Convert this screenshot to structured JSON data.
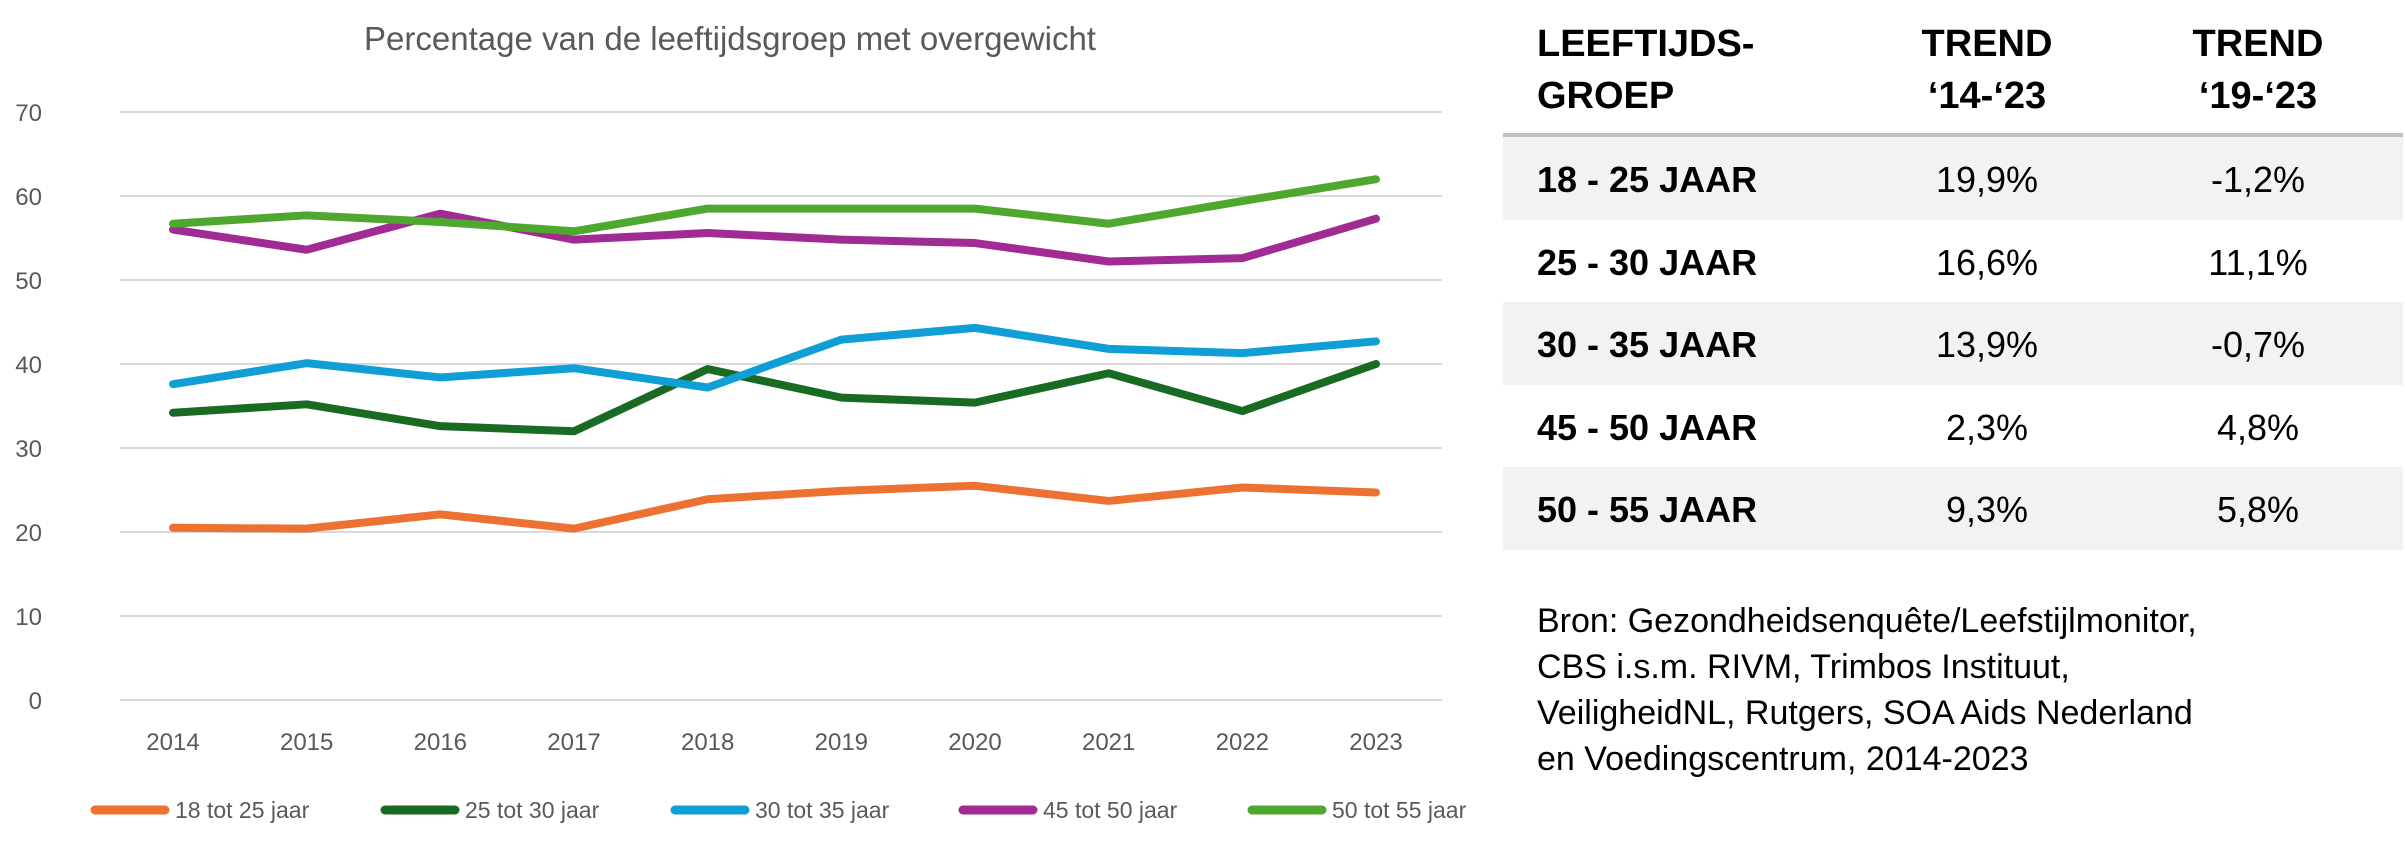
{
  "chart_data": {
    "type": "line",
    "title": "Percentage van de leeftijdsgroep met overgewicht",
    "xlabel": "",
    "ylabel": "",
    "categories": [
      "2014",
      "2015",
      "2016",
      "2017",
      "2018",
      "2019",
      "2020",
      "2021",
      "2022",
      "2023"
    ],
    "ylim": [
      0,
      70
    ],
    "yticks": [
      0,
      10,
      20,
      30,
      40,
      50,
      60,
      70
    ],
    "grid": true,
    "legend": "bottom",
    "series": [
      {
        "name": "18 tot 25 jaar",
        "color": "#ed7131",
        "values": [
          20.5,
          20.4,
          22.1,
          20.4,
          23.9,
          24.9,
          25.5,
          23.7,
          25.3,
          24.7
        ]
      },
      {
        "name": "25 tot 30 jaar",
        "color": "#196b24",
        "values": [
          34.2,
          35.2,
          32.6,
          32.0,
          39.4,
          36.0,
          35.4,
          38.9,
          34.4,
          40.0
        ]
      },
      {
        "name": "30 tot 35 jaar",
        "color": "#0f9ed5",
        "values": [
          37.6,
          40.1,
          38.4,
          39.5,
          37.2,
          42.9,
          44.3,
          41.8,
          41.3,
          42.7
        ]
      },
      {
        "name": "45 tot 50 jaar",
        "color": "#a02b93",
        "values": [
          56.0,
          53.6,
          57.9,
          54.8,
          55.6,
          54.8,
          54.4,
          52.2,
          52.6,
          57.3
        ]
      },
      {
        "name": "50 tot 55 jaar",
        "color": "#4ea72e",
        "values": [
          56.7,
          57.7,
          56.9,
          55.8,
          58.5,
          58.5,
          58.5,
          56.7,
          59.4,
          62.0
        ]
      }
    ]
  },
  "table": {
    "headers": [
      [
        "LEEFTIJDS-",
        "GROEP"
      ],
      [
        "TREND",
        "‘14-‘23"
      ],
      [
        "TREND",
        "‘19-‘23"
      ]
    ],
    "rows": [
      {
        "group": "18 - 25 JAAR",
        "t1": "19,9%",
        "t2": "-1,2%"
      },
      {
        "group": "25 - 30 JAAR",
        "t1": "16,6%",
        "t2": "11,1%"
      },
      {
        "group": "30 - 35 JAAR",
        "t1": "13,9%",
        "t2": "-0,7%"
      },
      {
        "group": "45 - 50 JAAR",
        "t1": "2,3%",
        "t2": "4,8%"
      },
      {
        "group": "50 - 55 JAAR",
        "t1": "9,3%",
        "t2": "5,8%"
      }
    ]
  },
  "source": "Bron: Gezondheidsenquête/Leefstijlmonitor,\nCBS i.s.m. RIVM, Trimbos Instituut,\nVeiligheidNL, Rutgers, SOA Aids Nederland\nen Voedingscentrum, 2014-2023"
}
